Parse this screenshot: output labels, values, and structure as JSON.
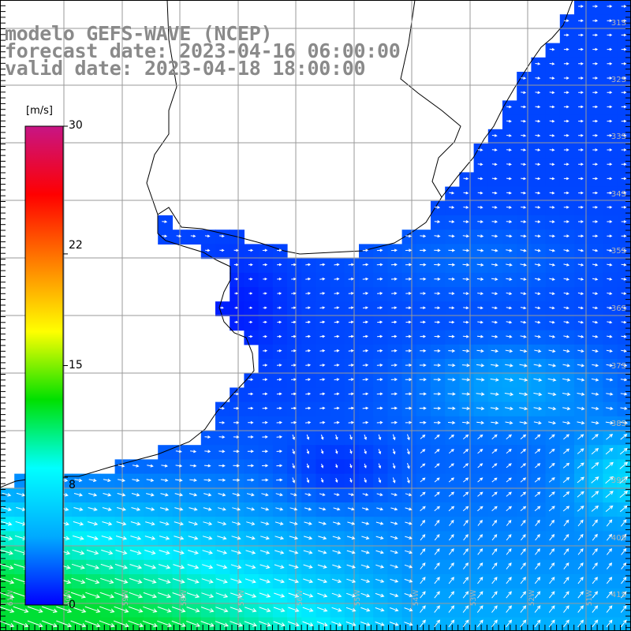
{
  "title": {
    "line1": "modelo GEFS-WAVE (NCEP)",
    "line2": "forecast date: 2023-04-16 06:00:00",
    "line3": "valid date: 2023-04-18 18:00:00"
  },
  "legend": {
    "unit": "[m/s]",
    "ticks": [
      "30",
      "22",
      "15",
      "8",
      "0"
    ],
    "tick_values": [
      30,
      22,
      15,
      8,
      0
    ],
    "range": [
      0,
      30
    ],
    "colors": [
      "#0000ff",
      "#00aaff",
      "#00ffff",
      "#00e000",
      "#ffff00",
      "#ff8000",
      "#ff0000",
      "#c71585"
    ]
  },
  "map": {
    "lat_labels": [
      "31S",
      "32S",
      "33S",
      "34S",
      "35S",
      "36S",
      "37S",
      "38S",
      "39S",
      "40S",
      "41S"
    ],
    "lon_labels": [
      "61W",
      "60W",
      "59W",
      "58W",
      "57W",
      "56W",
      "55W",
      "54W",
      "53W",
      "52W",
      "51W"
    ],
    "land_color": "#ffffff",
    "grid_color": "#9a9a9a",
    "arrow_color": "#ffffff"
  }
}
